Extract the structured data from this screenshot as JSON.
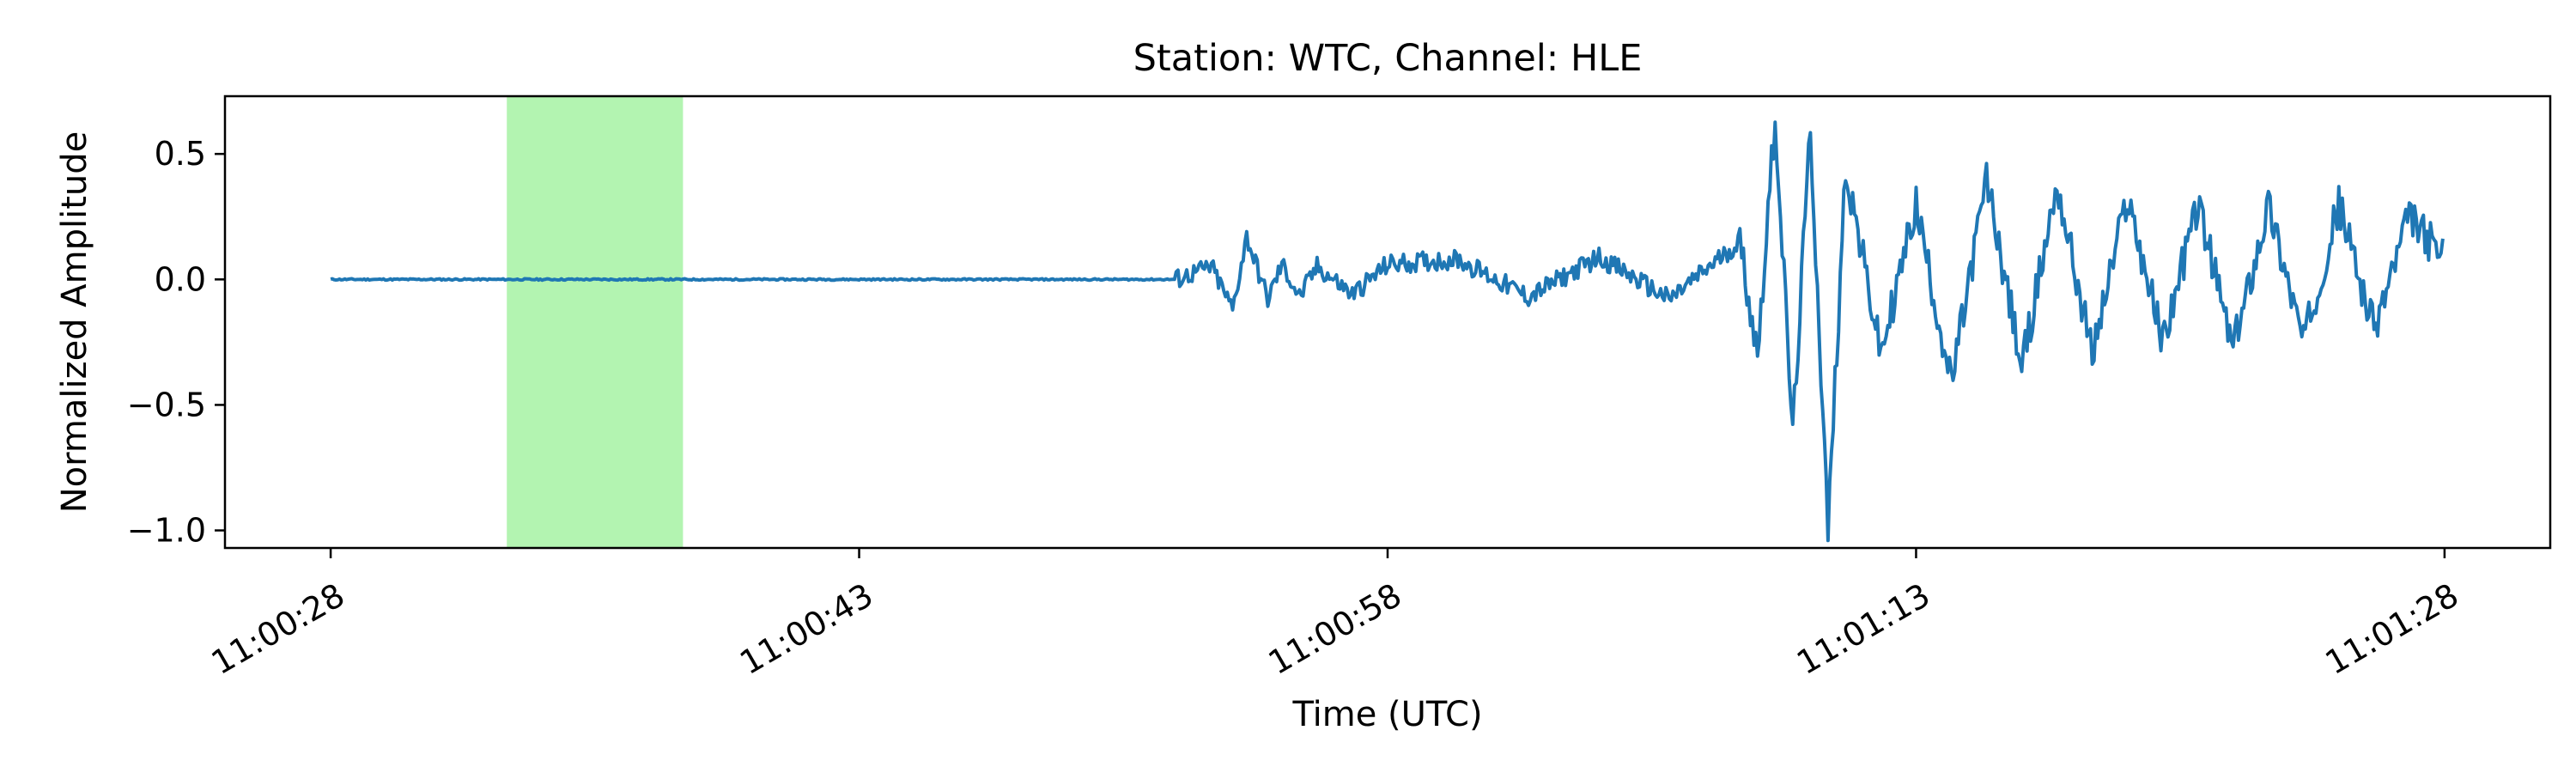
{
  "chart_data": {
    "type": "line",
    "title": "Station: WTC, Channel: HLE",
    "xlabel": "Time (UTC)",
    "ylabel": "Normalized Amplitude",
    "x_start": "11:00:28",
    "x_end": "11:01:28",
    "xlim": [
      "11:00:25",
      "11:01:31"
    ],
    "ylim": [
      -1.07,
      0.73
    ],
    "xticks": [
      "11:00:28",
      "11:00:43",
      "11:00:58",
      "11:01:13",
      "11:01:28"
    ],
    "yticks": [
      0.5,
      0.0,
      -0.5,
      -1.0
    ],
    "ytick_labels": [
      "0.5",
      "0.0",
      "−0.5",
      "−1.0"
    ],
    "highlight_span": {
      "start": "11:00:33",
      "end": "11:00:38",
      "color": "#b3f4b1"
    },
    "grid": false,
    "series": [
      {
        "color": "#1f77b4",
        "x": [
          "11:00:28",
          "11:00:35",
          "11:00:45",
          "11:00:52",
          "11:00:53",
          "11:00:53.6",
          "11:00:54",
          "11:00:54.6",
          "11:00:55",
          "11:00:55.5",
          "11:00:56",
          "11:00:57",
          "11:00:58",
          "11:01:00",
          "11:01:02",
          "11:01:04",
          "11:01:06",
          "11:01:08",
          "11:01:08.5",
          "11:01:09",
          "11:01:09.5",
          "11:01:10",
          "11:01:10.5",
          "11:01:11",
          "11:01:12",
          "11:01:13",
          "11:01:14",
          "11:01:15",
          "11:01:16",
          "11:01:17",
          "11:01:18",
          "11:01:19",
          "11:01:20",
          "11:01:21",
          "11:01:22",
          "11:01:23",
          "11:01:24",
          "11:01:25",
          "11:01:26",
          "11:01:27",
          "11:01:28"
        ],
        "y": [
          0.0,
          0.0,
          0.0,
          0.0,
          0.05,
          -0.12,
          0.17,
          -0.08,
          0.06,
          -0.07,
          0.05,
          -0.06,
          0.06,
          0.08,
          -0.07,
          0.09,
          -0.08,
          0.15,
          -0.3,
          0.65,
          -0.62,
          0.6,
          -1.0,
          0.45,
          -0.3,
          0.3,
          -0.42,
          0.4,
          -0.35,
          0.38,
          -0.3,
          0.33,
          -0.25,
          0.3,
          -0.28,
          0.3,
          -0.25,
          0.3,
          -0.2,
          0.25,
          0.08
        ]
      }
    ]
  }
}
